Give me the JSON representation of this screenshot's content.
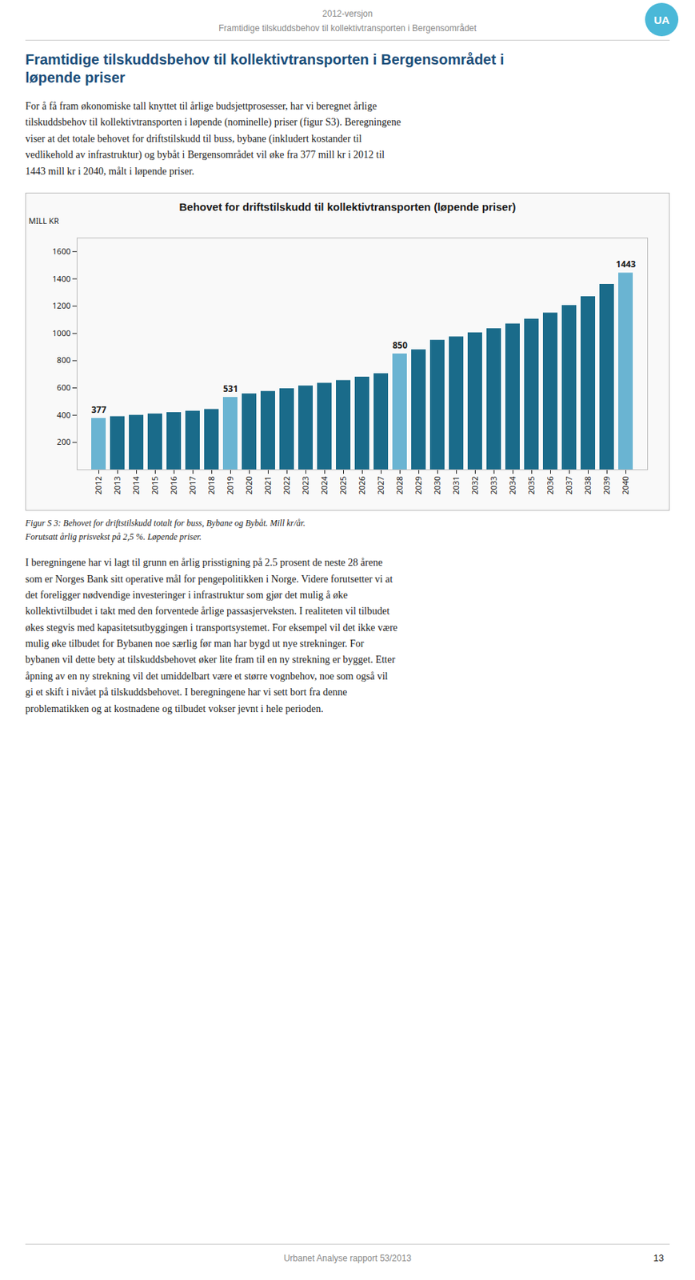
{
  "chart_data": {
    "type": "bar",
    "title": "Behovet for driftstilskudd til kollektivtransporten (løpende priser)",
    "ylabel": "MILL KR",
    "categories": [
      "2012",
      "2013",
      "2014",
      "2015",
      "2016",
      "2017",
      "2018",
      "2019",
      "2020",
      "2021",
      "2022",
      "2023",
      "2024",
      "2025",
      "2026",
      "2027",
      "2028",
      "2029",
      "2030",
      "2031",
      "2032",
      "2033",
      "2034",
      "2035",
      "2036",
      "2037",
      "2038",
      "2039",
      "2040"
    ],
    "values": [
      377,
      390,
      400,
      410,
      420,
      430,
      443,
      531,
      557,
      575,
      595,
      615,
      635,
      655,
      680,
      705,
      850,
      880,
      950,
      975,
      1005,
      1035,
      1070,
      1105,
      1150,
      1205,
      1270,
      1360,
      1443
    ],
    "value_labels": [
      "377",
      null,
      null,
      null,
      null,
      null,
      null,
      "531",
      null,
      null,
      null,
      null,
      null,
      null,
      null,
      null,
      "850",
      null,
      null,
      null,
      null,
      null,
      null,
      null,
      null,
      null,
      null,
      null,
      "1443"
    ],
    "colors": [
      "#6ab4d2",
      "#1a6b8a",
      "#1a6b8a",
      "#1a6b8a",
      "#1a6b8a",
      "#1a6b8a",
      "#1a6b8a",
      "#6ab4d2",
      "#1a6b8a",
      "#1a6b8a",
      "#1a6b8a",
      "#1a6b8a",
      "#1a6b8a",
      "#1a6b8a",
      "#1a6b8a",
      "#1a6b8a",
      "#6ab4d2",
      "#1a6b8a",
      "#1a6b8a",
      "#1a6b8a",
      "#1a6b8a",
      "#1a6b8a",
      "#1a6b8a",
      "#1a6b8a",
      "#1a6b8a",
      "#1a6b8a",
      "#1a6b8a",
      "#1a6b8a",
      "#6ab4d2"
    ],
    "data_labels": true,
    "grid": false,
    "ylim": [
      0,
      1700
    ],
    "yticks": [
      200,
      400,
      600,
      800,
      1000,
      1200,
      1400,
      1600
    ],
    "annotations": [
      "2012-versjon",
      "Framtidige tilskuddsbehov til kollektivtransporten i Bergensområdet",
      "UA",
      "Framtidige tilskuddsbehov til kollektivtransporten i Bergensområdet i\nløpende priser",
      "For å få fram økonomiske tall knyttet til årlige budsjettprosesser, har vi beregnet årlige\ntilskuddsbehov til kollektivtransporten i løpende (nominelle) priser (figur S3). Beregningene\nviser at det totale behovet for driftstilskudd til buss, bybane (inkludert kostander til\nvedlikehold av infrastruktur) og bybåt i Bergensområdet vil øke fra 377 mill kr i 2012 til\n1443 mill kr i 2040, målt i løpende priser.",
      "Figur S 3: Behovet for driftstilskudd totalt for buss, Bybane og Bybåt. Mill kr/år.\nForutsatt årlig prisvekst på 2,5 %. Løpende priser.",
      "I beregningene har vi lagt til grunn en årlig prisstigning på 2.5 prosent de neste 28 årene\nsom er Norges Bank sitt operative mål for pengepolitikken i Norge. Videre forutsetter vi at\ndet foreligger nødvendige investeringer i infrastruktur som gjør det mulig å øke\nkollektivtilbudet i takt med den forventede årlige passasjerveksten. I realiteten vil tilbudet\nøkes stegvis med kapasitetsutbyggingen i transportsystemet. For eksempel vil det ikke være\nmulig øke tilbudet for Bybanen noe særlig før man har bygd ut nye strekninger. For\nbybanen vil dette bety at tilskuddsbehovet øker lite fram til en ny strekning er bygget. Etter\nåpning av en ny strekning vil det umiddelbart være et større vognbehov, noe som også vil\ngi et skift i nivået på tilskuddsbehovet. I beregningene har vi sett bort fra denne\nproblematikken og at kostnadene og tilbudet vokser jevnt i hele perioden.",
      "Urbanet Analyse rapport 53/2013",
      "13"
    ]
  }
}
